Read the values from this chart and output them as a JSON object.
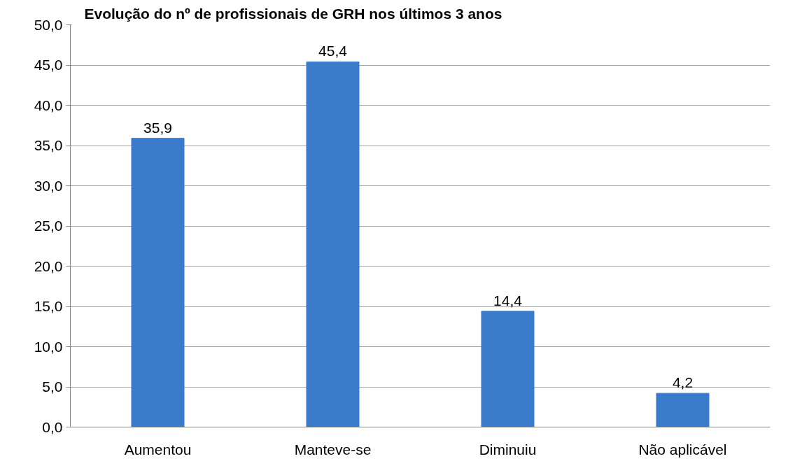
{
  "chart_data": {
    "type": "bar",
    "title": "Evolução do nº de profissionais de GRH nos últimos 3 anos",
    "categories": [
      "Aumentou",
      "Manteve-se",
      "Diminuiu",
      "Não aplicável"
    ],
    "values": [
      35.9,
      45.4,
      14.4,
      4.2
    ],
    "value_labels": [
      "35,9",
      "45,4",
      "14,4",
      "4,2"
    ],
    "color": "#3b7bcb",
    "ylim": [
      0,
      50
    ],
    "yticks": [
      {
        "value": 0,
        "label": "0,0"
      },
      {
        "value": 5,
        "label": "5,0"
      },
      {
        "value": 10,
        "label": "10,0"
      },
      {
        "value": 15,
        "label": "15,0"
      },
      {
        "value": 20,
        "label": "20,0"
      },
      {
        "value": 25,
        "label": "25,0"
      },
      {
        "value": 30,
        "label": "30,0"
      },
      {
        "value": 35,
        "label": "35,0"
      },
      {
        "value": 40,
        "label": "40,0"
      },
      {
        "value": 45,
        "label": "45,0"
      },
      {
        "value": 50,
        "label": "50,0"
      }
    ],
    "grid": "y"
  }
}
